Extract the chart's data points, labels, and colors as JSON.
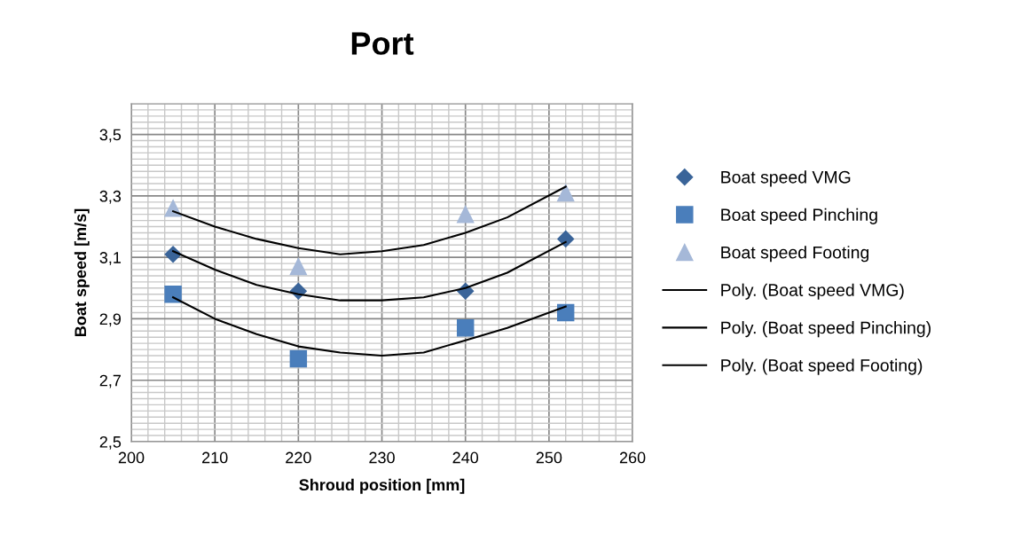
{
  "chart_data": {
    "type": "scatter",
    "title": "Port",
    "xlabel": "Shroud position [mm]",
    "ylabel": "Boat speed [m/s]",
    "x": [
      205,
      220,
      240,
      252
    ],
    "series": [
      {
        "name": "Boat speed VMG",
        "color": "#3a6499",
        "marker": "diamond",
        "values": [
          3.11,
          2.99,
          2.99,
          3.16
        ]
      },
      {
        "name": "Boat speed Pinching",
        "color": "#4a7ebb",
        "marker": "square",
        "values": [
          2.98,
          2.77,
          2.87,
          2.92
        ]
      },
      {
        "name": "Boat speed Footing",
        "color": "#a5b8d8",
        "marker": "triangle",
        "values": [
          3.26,
          3.07,
          3.24,
          3.31
        ]
      },
      {
        "name": "Poly. (Boat speed VMG)",
        "type": "line",
        "color": "#000000",
        "marker": "none",
        "x": [
          205,
          210,
          215,
          220,
          225,
          230,
          235,
          240,
          245,
          252
        ],
        "values": [
          3.12,
          3.06,
          3.01,
          2.98,
          2.96,
          2.96,
          2.97,
          3.0,
          3.05,
          3.15
        ]
      },
      {
        "name": "Poly. (Boat speed Pinching)",
        "type": "line",
        "color": "#000000",
        "marker": "none",
        "x": [
          205,
          210,
          215,
          220,
          225,
          230,
          235,
          240,
          245,
          252
        ],
        "values": [
          2.97,
          2.9,
          2.85,
          2.81,
          2.79,
          2.78,
          2.79,
          2.83,
          2.87,
          2.94
        ]
      },
      {
        "name": "Poly. (Boat speed Footing)",
        "type": "line",
        "color": "#000000",
        "marker": "none",
        "x": [
          205,
          210,
          215,
          220,
          225,
          230,
          235,
          240,
          245,
          252
        ],
        "values": [
          3.25,
          3.2,
          3.16,
          3.13,
          3.11,
          3.12,
          3.14,
          3.18,
          3.23,
          3.33
        ]
      }
    ],
    "xlim": [
      200,
      260
    ],
    "xticks": [
      200,
      210,
      220,
      230,
      240,
      250,
      260
    ],
    "ylim": [
      2.5,
      3.6
    ],
    "yticks": [
      {
        "value": 2.5,
        "label": "2,5"
      },
      {
        "value": 2.7,
        "label": "2,7"
      },
      {
        "value": 2.9,
        "label": "2,9"
      },
      {
        "value": 3.1,
        "label": "3,1"
      },
      {
        "value": 3.3,
        "label": "3,3"
      },
      {
        "value": 3.5,
        "label": "3,5"
      }
    ],
    "grid": true,
    "legend": "right",
    "line_style": "solid"
  }
}
